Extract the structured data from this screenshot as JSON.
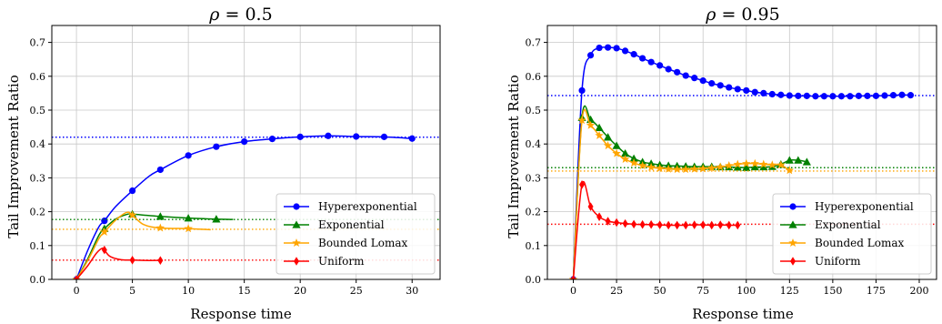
{
  "chart_data": [
    {
      "type": "line",
      "title": "ρ = 0.5",
      "title_prefix": "ρ",
      "title_value": " = 0.5",
      "xlabel": "Response time",
      "ylabel": "Tail Improvement Ratio",
      "xlim": [
        -2.2,
        32.5
      ],
      "ylim": [
        0,
        0.75
      ],
      "xticks": [
        0,
        5,
        10,
        15,
        20,
        25,
        30
      ],
      "yticks": [
        0.0,
        0.1,
        0.2,
        0.3,
        0.4,
        0.5,
        0.6,
        0.7
      ],
      "xtick_labels": [
        "0",
        "5",
        "10",
        "15",
        "20",
        "25",
        "30"
      ],
      "ytick_labels": [
        "0.0",
        "0.1",
        "0.2",
        "0.3",
        "0.4",
        "0.5",
        "0.6",
        "0.7"
      ],
      "grid": true,
      "legend_position": "lower-right",
      "series": [
        {
          "name": "Hyperexponential",
          "color": "#0000ff",
          "marker": "circle",
          "asymptote": 0.42,
          "x": [
            0,
            1,
            2,
            2.5,
            3.5,
            5,
            6.5,
            7.5,
            10,
            12.5,
            15,
            17.5,
            20,
            22.5,
            25,
            27.5,
            30
          ],
          "y": [
            0,
            0.085,
            0.155,
            0.173,
            0.215,
            0.262,
            0.305,
            0.324,
            0.366,
            0.392,
            0.407,
            0.415,
            0.421,
            0.424,
            0.422,
            0.421,
            0.416
          ],
          "marker_x": [
            0,
            2.5,
            5,
            7.5,
            10,
            12.5,
            15,
            17.5,
            20,
            22.5,
            25,
            27.5,
            30
          ],
          "marker_y": [
            0,
            0.173,
            0.262,
            0.324,
            0.366,
            0.392,
            0.407,
            0.415,
            0.421,
            0.424,
            0.422,
            0.421,
            0.416
          ]
        },
        {
          "name": "Exponential",
          "color": "#008000",
          "marker": "triangle",
          "asymptote": 0.177,
          "x": [
            0,
            1,
            2,
            2.5,
            3.5,
            4.5,
            5,
            6,
            7.5,
            10,
            12.5,
            14
          ],
          "y": [
            0,
            0.06,
            0.13,
            0.15,
            0.178,
            0.192,
            0.193,
            0.19,
            0.186,
            0.181,
            0.178,
            0.177
          ],
          "marker_x": [
            0,
            2.5,
            5,
            7.5,
            10,
            12.5
          ],
          "marker_y": [
            0,
            0.15,
            0.193,
            0.186,
            0.181,
            0.178
          ]
        },
        {
          "name": "Bounded Lomax",
          "color": "#ffa500",
          "marker": "star",
          "asymptote": 0.148,
          "x": [
            0,
            1,
            2,
            2.5,
            3.5,
            4.5,
            5,
            6,
            7.5,
            10,
            12
          ],
          "y": [
            0,
            0.055,
            0.12,
            0.14,
            0.175,
            0.198,
            0.19,
            0.162,
            0.152,
            0.15,
            0.147
          ],
          "marker_x": [
            0,
            2.5,
            5,
            7.5,
            10
          ],
          "marker_y": [
            0,
            0.14,
            0.19,
            0.152,
            0.15
          ]
        },
        {
          "name": "Uniform",
          "color": "#ff0000",
          "marker": "diamond",
          "asymptote": 0.057,
          "x": [
            0,
            1,
            1.8,
            2.3,
            2.5,
            3,
            4,
            5,
            6,
            7.5
          ],
          "y": [
            0,
            0.04,
            0.078,
            0.092,
            0.087,
            0.068,
            0.058,
            0.057,
            0.056,
            0.056
          ],
          "marker_x": [
            0,
            2.5,
            5,
            7.5
          ],
          "marker_y": [
            0,
            0.087,
            0.057,
            0.056
          ]
        }
      ]
    },
    {
      "type": "line",
      "title": "ρ = 0.95",
      "title_prefix": "ρ",
      "title_value": " = 0.95",
      "xlabel": "Response time",
      "ylabel": "Tail Improvement Ratio",
      "xlim": [
        -15,
        210
      ],
      "ylim": [
        0,
        0.75
      ],
      "xticks": [
        0,
        25,
        50,
        75,
        100,
        125,
        150,
        175,
        200
      ],
      "yticks": [
        0.0,
        0.1,
        0.2,
        0.3,
        0.4,
        0.5,
        0.6,
        0.7
      ],
      "xtick_labels": [
        "0",
        "25",
        "50",
        "75",
        "100",
        "125",
        "150",
        "175",
        "200"
      ],
      "ytick_labels": [
        "0.0",
        "0.1",
        "0.2",
        "0.3",
        "0.4",
        "0.5",
        "0.6",
        "0.7"
      ],
      "grid": true,
      "legend_position": "lower-right",
      "series": [
        {
          "name": "Hyperexponential",
          "color": "#0000ff",
          "marker": "circle",
          "asymptote": 0.543,
          "x": [
            0,
            5,
            10,
            15,
            20,
            25,
            30,
            35,
            40,
            45,
            50,
            55,
            60,
            65,
            70,
            75,
            80,
            85,
            90,
            95,
            100,
            105,
            110,
            115,
            120,
            125,
            130,
            135,
            140,
            145,
            150,
            155,
            160,
            165,
            170,
            175,
            180,
            185,
            190,
            195
          ],
          "y": [
            0,
            0.558,
            0.662,
            0.684,
            0.685,
            0.683,
            0.675,
            0.665,
            0.653,
            0.642,
            0.632,
            0.621,
            0.612,
            0.602,
            0.595,
            0.587,
            0.579,
            0.573,
            0.567,
            0.562,
            0.558,
            0.553,
            0.55,
            0.547,
            0.545,
            0.543,
            0.542,
            0.542,
            0.541,
            0.541,
            0.541,
            0.541,
            0.541,
            0.542,
            0.542,
            0.542,
            0.543,
            0.544,
            0.545,
            0.544
          ],
          "marker_x": [
            0,
            5,
            10,
            15,
            20,
            25,
            30,
            35,
            40,
            45,
            50,
            55,
            60,
            65,
            70,
            75,
            80,
            85,
            90,
            95,
            100,
            105,
            110,
            115,
            120,
            125,
            130,
            135,
            140,
            145,
            150,
            155,
            160,
            165,
            170,
            175,
            180,
            185,
            190,
            195
          ],
          "marker_y": [
            0,
            0.558,
            0.662,
            0.684,
            0.685,
            0.683,
            0.675,
            0.665,
            0.653,
            0.642,
            0.632,
            0.621,
            0.612,
            0.602,
            0.595,
            0.587,
            0.579,
            0.573,
            0.567,
            0.562,
            0.558,
            0.553,
            0.55,
            0.547,
            0.545,
            0.543,
            0.542,
            0.542,
            0.541,
            0.541,
            0.541,
            0.541,
            0.541,
            0.542,
            0.542,
            0.542,
            0.543,
            0.544,
            0.545,
            0.544
          ]
        },
        {
          "name": "Exponential",
          "color": "#008000",
          "marker": "triangle",
          "asymptote": 0.33,
          "x": [
            0,
            5,
            10,
            15,
            20,
            25,
            30,
            35,
            40,
            45,
            50,
            55,
            60,
            65,
            70,
            75,
            80,
            85,
            90,
            95,
            100,
            105,
            110,
            115,
            120,
            125,
            130,
            135
          ],
          "y": [
            0,
            0.478,
            0.472,
            0.448,
            0.42,
            0.395,
            0.372,
            0.357,
            0.347,
            0.342,
            0.338,
            0.336,
            0.335,
            0.334,
            0.333,
            0.333,
            0.333,
            0.332,
            0.332,
            0.331,
            0.33,
            0.332,
            0.332,
            0.333,
            0.34,
            0.352,
            0.352,
            0.347
          ],
          "marker_x": [
            0,
            5,
            10,
            15,
            20,
            25,
            30,
            35,
            40,
            45,
            50,
            55,
            60,
            65,
            70,
            75,
            80,
            85,
            90,
            95,
            100,
            105,
            110,
            115,
            120,
            125,
            130,
            135
          ],
          "marker_y": [
            0,
            0.478,
            0.472,
            0.448,
            0.42,
            0.395,
            0.372,
            0.357,
            0.347,
            0.342,
            0.338,
            0.336,
            0.335,
            0.334,
            0.333,
            0.333,
            0.333,
            0.332,
            0.332,
            0.331,
            0.33,
            0.332,
            0.332,
            0.333,
            0.34,
            0.352,
            0.352,
            0.347
          ]
        },
        {
          "name": "Bounded Lomax",
          "color": "#ffa500",
          "marker": "star",
          "asymptote": 0.32,
          "x": [
            0,
            5,
            10,
            15,
            20,
            25,
            30,
            35,
            40,
            45,
            50,
            55,
            60,
            65,
            70,
            75,
            80,
            85,
            90,
            95,
            100,
            105,
            110,
            115,
            120,
            125
          ],
          "y": [
            0,
            0.47,
            0.455,
            0.425,
            0.395,
            0.372,
            0.355,
            0.344,
            0.336,
            0.331,
            0.328,
            0.326,
            0.325,
            0.325,
            0.326,
            0.327,
            0.329,
            0.332,
            0.336,
            0.34,
            0.342,
            0.342,
            0.34,
            0.338,
            0.338,
            0.322
          ],
          "marker_x": [
            0,
            5,
            10,
            15,
            20,
            25,
            30,
            35,
            40,
            45,
            50,
            55,
            60,
            65,
            70,
            75,
            80,
            85,
            90,
            95,
            100,
            105,
            110,
            115,
            120,
            125
          ],
          "marker_y": [
            0,
            0.47,
            0.455,
            0.425,
            0.395,
            0.372,
            0.355,
            0.344,
            0.336,
            0.331,
            0.328,
            0.326,
            0.325,
            0.325,
            0.326,
            0.327,
            0.329,
            0.332,
            0.336,
            0.34,
            0.342,
            0.342,
            0.34,
            0.338,
            0.338,
            0.322
          ]
        },
        {
          "name": "Uniform",
          "color": "#ff0000",
          "marker": "diamond",
          "asymptote": 0.163,
          "x": [
            0,
            5,
            10,
            15,
            20,
            25,
            30,
            35,
            40,
            45,
            50,
            55,
            60,
            65,
            70,
            75,
            80,
            85,
            90,
            95
          ],
          "y": [
            0,
            0.28,
            0.215,
            0.185,
            0.172,
            0.168,
            0.165,
            0.163,
            0.162,
            0.162,
            0.161,
            0.16,
            0.16,
            0.16,
            0.161,
            0.161,
            0.16,
            0.161,
            0.16,
            0.16
          ],
          "marker_x": [
            0,
            5,
            10,
            15,
            20,
            25,
            30,
            35,
            40,
            45,
            50,
            55,
            60,
            65,
            70,
            75,
            80,
            85,
            90,
            95
          ],
          "marker_y": [
            0,
            0.28,
            0.215,
            0.185,
            0.172,
            0.168,
            0.165,
            0.163,
            0.162,
            0.162,
            0.161,
            0.16,
            0.16,
            0.16,
            0.161,
            0.161,
            0.16,
            0.161,
            0.16,
            0.16
          ]
        }
      ]
    }
  ]
}
